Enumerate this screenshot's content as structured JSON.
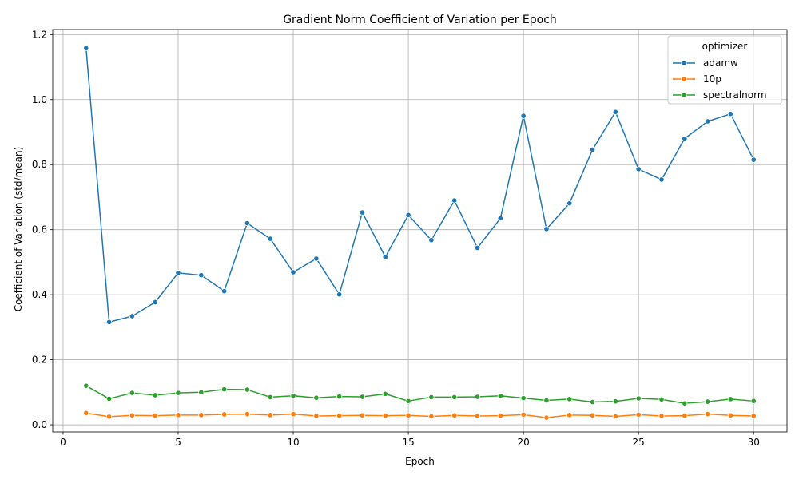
{
  "chart_data": {
    "type": "line",
    "title": "Gradient Norm Coefficient of Variation per Epoch",
    "xlabel": "Epoch",
    "ylabel": "Coefficient of Variation (std/mean)",
    "xlim": [
      -0.45,
      31.45
    ],
    "ylim": [
      -0.022,
      1.2155
    ],
    "x_ticks": [
      0,
      5,
      10,
      15,
      20,
      25,
      30
    ],
    "y_ticks": [
      0.0,
      0.2,
      0.4,
      0.6,
      0.8,
      1.0,
      1.2
    ],
    "x_tick_labels": [
      "0",
      "5",
      "10",
      "15",
      "20",
      "25",
      "30"
    ],
    "y_tick_labels": [
      "0.0",
      "0.2",
      "0.4",
      "0.6",
      "0.8",
      "1.0",
      "1.2"
    ],
    "grid": true,
    "legend": {
      "title": "optimizer",
      "placement": "top-right"
    },
    "x": [
      1,
      2,
      3,
      4,
      5,
      6,
      7,
      8,
      9,
      10,
      11,
      12,
      13,
      14,
      15,
      16,
      17,
      18,
      19,
      20,
      21,
      22,
      23,
      24,
      25,
      26,
      27,
      28,
      29,
      30
    ],
    "series": [
      {
        "name": "adamw",
        "color": "#1f77b4",
        "values": [
          1.158,
          0.316,
          0.334,
          0.377,
          0.467,
          0.46,
          0.411,
          0.62,
          0.572,
          0.469,
          0.511,
          0.401,
          0.653,
          0.516,
          0.645,
          0.568,
          0.69,
          0.544,
          0.635,
          0.95,
          0.602,
          0.681,
          0.846,
          0.962,
          0.786,
          0.754,
          0.88,
          0.933,
          0.956,
          0.815
        ]
      },
      {
        "name": "10p",
        "color": "#ff7f0e",
        "values": [
          0.036,
          0.025,
          0.029,
          0.028,
          0.03,
          0.03,
          0.032,
          0.033,
          0.03,
          0.033,
          0.027,
          0.028,
          0.029,
          0.028,
          0.029,
          0.026,
          0.029,
          0.027,
          0.028,
          0.031,
          0.022,
          0.03,
          0.029,
          0.026,
          0.031,
          0.027,
          0.028,
          0.033,
          0.029,
          0.027
        ]
      },
      {
        "name": "spectralnorm",
        "color": "#2ca02c",
        "values": [
          0.12,
          0.08,
          0.098,
          0.091,
          0.098,
          0.1,
          0.109,
          0.108,
          0.085,
          0.089,
          0.083,
          0.087,
          0.086,
          0.095,
          0.073,
          0.085,
          0.085,
          0.086,
          0.089,
          0.082,
          0.075,
          0.079,
          0.07,
          0.072,
          0.081,
          0.078,
          0.066,
          0.071,
          0.079,
          0.073
        ]
      }
    ]
  }
}
